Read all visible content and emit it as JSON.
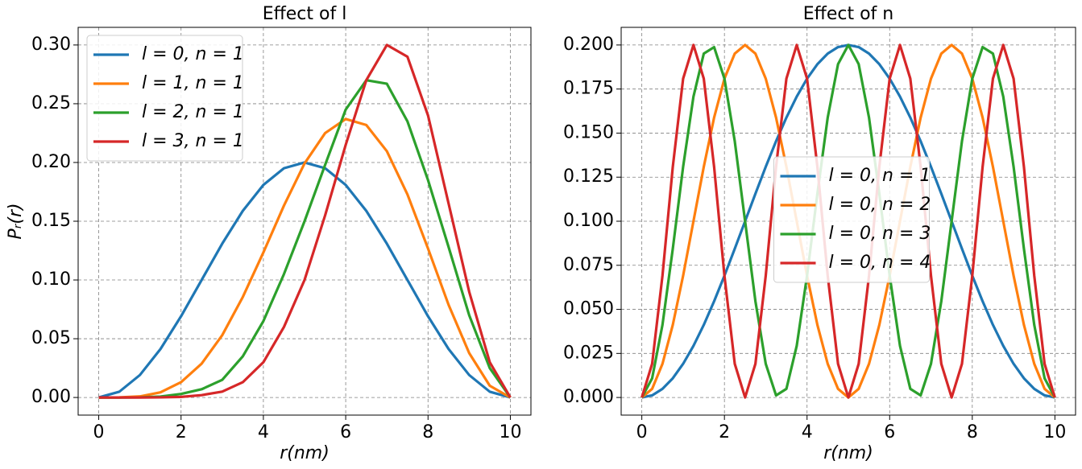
{
  "chart_data": [
    {
      "type": "line",
      "title": "Effect of l",
      "xlabel": "r(nm)",
      "ylabel": "Pᵣ(r)",
      "x": [
        0,
        0.5,
        1,
        1.5,
        2,
        2.5,
        3,
        3.5,
        4,
        4.5,
        5,
        5.5,
        6,
        6.5,
        7,
        7.5,
        8,
        8.5,
        9,
        9.5,
        10
      ],
      "series": [
        {
          "name": "l = 0, n = 1",
          "color": "#1f77b4",
          "values": [
            0,
            0.0049,
            0.0191,
            0.0412,
            0.0691,
            0.1,
            0.1309,
            0.1588,
            0.1809,
            0.1951,
            0.2,
            0.1951,
            0.1809,
            0.1588,
            0.1309,
            0.1,
            0.0691,
            0.0412,
            0.0191,
            0.0049,
            0
          ]
        },
        {
          "name": "l = 1, n = 1",
          "color": "#ff7f0e",
          "values": [
            0,
            6e-05,
            0.0009,
            0.0044,
            0.013,
            0.0288,
            0.053,
            0.0855,
            0.1234,
            0.1633,
            0.1992,
            0.225,
            0.237,
            0.2319,
            0.2096,
            0.1728,
            0.1268,
            0.0788,
            0.0378,
            0.01,
            0
          ]
        },
        {
          "name": "l = 2, n = 1",
          "color": "#2ca02c",
          "values": [
            0,
            0,
            0.0001,
            0.0008,
            0.003,
            0.007,
            0.015,
            0.035,
            0.065,
            0.105,
            0.15,
            0.198,
            0.245,
            0.27,
            0.267,
            0.235,
            0.185,
            0.128,
            0.07,
            0.025,
            0
          ]
        },
        {
          "name": "l = 3, n = 1",
          "color": "#d62728",
          "values": [
            0,
            0,
            0,
            0.0001,
            0.0005,
            0.002,
            0.005,
            0.013,
            0.03,
            0.06,
            0.1,
            0.155,
            0.215,
            0.27,
            0.3,
            0.29,
            0.24,
            0.165,
            0.09,
            0.03,
            0
          ]
        }
      ],
      "xlim": [
        -0.5,
        10.5
      ],
      "ylim": [
        -0.015,
        0.315
      ],
      "xticks": [
        0,
        2,
        4,
        6,
        8,
        10
      ],
      "yticks": [
        {
          "value": 0,
          "label": "0.00"
        },
        {
          "value": 0.05,
          "label": "0.05"
        },
        {
          "value": 0.1,
          "label": "0.10"
        },
        {
          "value": 0.15,
          "label": "0.15"
        },
        {
          "value": 0.2,
          "label": "0.20"
        },
        {
          "value": 0.25,
          "label": "0.25"
        },
        {
          "value": 0.3,
          "label": "0.30"
        }
      ],
      "grid": true,
      "legend": "upper left"
    },
    {
      "type": "line",
      "title": "Effect of n",
      "xlabel": "r(nm)",
      "x": [
        0,
        0.25,
        0.5,
        0.75,
        1,
        1.25,
        1.5,
        1.75,
        2,
        2.25,
        2.5,
        2.75,
        3,
        3.25,
        3.5,
        3.75,
        4,
        4.25,
        4.5,
        4.75,
        5,
        5.25,
        5.5,
        5.75,
        6,
        6.25,
        6.5,
        6.75,
        7,
        7.25,
        7.5,
        7.75,
        8,
        8.25,
        8.5,
        8.75,
        9,
        9.25,
        9.5,
        9.75,
        10
      ],
      "series": [
        {
          "name": "l = 0, n = 1",
          "color": "#1f77b4",
          "values": [
            0,
            0.0012,
            0.0049,
            0.0109,
            0.0191,
            0.0293,
            0.0412,
            0.0546,
            0.0691,
            0.0844,
            0.1,
            0.1156,
            0.1309,
            0.1454,
            0.1588,
            0.1707,
            0.1809,
            0.1891,
            0.1951,
            0.1988,
            0.2,
            0.1988,
            0.1951,
            0.1891,
            0.1809,
            0.1707,
            0.1588,
            0.1454,
            0.1309,
            0.1156,
            0.1,
            0.0844,
            0.0691,
            0.0546,
            0.0412,
            0.0293,
            0.0191,
            0.0109,
            0.0049,
            0.0012,
            0
          ]
        },
        {
          "name": "l = 0, n = 2",
          "color": "#ff7f0e",
          "values": [
            0,
            0.0049,
            0.0191,
            0.0412,
            0.0691,
            0.1,
            0.1309,
            0.1588,
            0.1809,
            0.1951,
            0.2,
            0.1951,
            0.1809,
            0.1588,
            0.1309,
            0.1,
            0.0691,
            0.0412,
            0.0191,
            0.0049,
            0,
            0.0049,
            0.0191,
            0.0412,
            0.0691,
            0.1,
            0.1309,
            0.1588,
            0.1809,
            0.1951,
            0.2,
            0.1951,
            0.1809,
            0.1588,
            0.1309,
            0.1,
            0.0691,
            0.0412,
            0.0191,
            0.0049,
            0
          ]
        },
        {
          "name": "l = 0, n = 3",
          "color": "#2ca02c",
          "values": [
            0,
            0.0109,
            0.0412,
            0.0844,
            0.1309,
            0.1707,
            0.1951,
            0.1988,
            0.1809,
            0.1454,
            0.1,
            0.0546,
            0.0191,
            0.0012,
            0.0049,
            0.0293,
            0.0691,
            0.1156,
            0.1588,
            0.1891,
            0.2,
            0.1891,
            0.1588,
            0.1156,
            0.0691,
            0.0293,
            0.0049,
            0.0012,
            0.0191,
            0.0546,
            0.1,
            0.1454,
            0.1809,
            0.1988,
            0.1951,
            0.1707,
            0.1309,
            0.0844,
            0.0412,
            0.0109,
            0
          ]
        },
        {
          "name": "l = 0, n = 4",
          "color": "#d62728",
          "values": [
            0,
            0.0191,
            0.0691,
            0.1309,
            0.1809,
            0.2,
            0.1809,
            0.1309,
            0.0691,
            0.0191,
            0,
            0.0191,
            0.0691,
            0.1309,
            0.1809,
            0.2,
            0.1809,
            0.1309,
            0.0691,
            0.0191,
            0,
            0.0191,
            0.0691,
            0.1309,
            0.1809,
            0.2,
            0.1809,
            0.1309,
            0.0691,
            0.0191,
            0,
            0.0191,
            0.0691,
            0.1309,
            0.1809,
            0.2,
            0.1809,
            0.1309,
            0.0691,
            0.0191,
            0
          ]
        }
      ],
      "xlim": [
        -0.5,
        10.5
      ],
      "ylim": [
        -0.01,
        0.21
      ],
      "xticks": [
        0,
        2,
        4,
        6,
        8,
        10
      ],
      "yticks": [
        {
          "value": 0,
          "label": "0.000"
        },
        {
          "value": 0.025,
          "label": "0.025"
        },
        {
          "value": 0.05,
          "label": "0.050"
        },
        {
          "value": 0.075,
          "label": "0.075"
        },
        {
          "value": 0.1,
          "label": "0.100"
        },
        {
          "value": 0.125,
          "label": "0.125"
        },
        {
          "value": 0.15,
          "label": "0.150"
        },
        {
          "value": 0.175,
          "label": "0.175"
        },
        {
          "value": 0.2,
          "label": "0.200"
        }
      ],
      "grid": true,
      "legend": "center"
    }
  ]
}
